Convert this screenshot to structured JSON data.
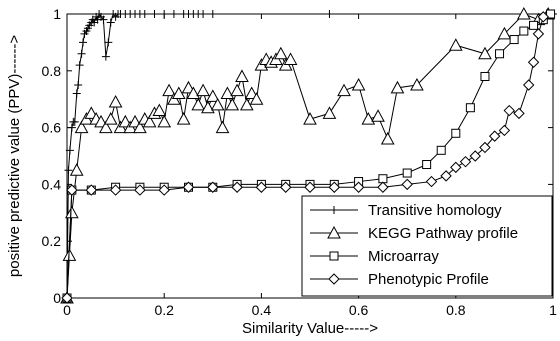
{
  "chart_data": {
    "type": "line",
    "title": "",
    "xlabel": "Similarity Value----->",
    "ylabel": "positive predictive value (PPV)------>",
    "xlim": [
      0,
      1
    ],
    "ylim": [
      0,
      1
    ],
    "x_ticks": [
      "0",
      "0.2",
      "0.4",
      "0.6",
      "0.8",
      "1"
    ],
    "y_ticks": [
      "0",
      "0.2",
      "0.4",
      "0.6",
      "0.8",
      "1"
    ],
    "grid": false,
    "legend_position": "bottom-right",
    "series": [
      {
        "name": "Transitive homology",
        "marker": "plus",
        "x": [
          0,
          0.003,
          0.006,
          0.01,
          0.013,
          0.016,
          0.02,
          0.023,
          0.026,
          0.03,
          0.033,
          0.036,
          0.04,
          0.043,
          0.046,
          0.05,
          0.053,
          0.056,
          0.06,
          0.063,
          0.066,
          0.07,
          0.075,
          0.08,
          0.085,
          0.09,
          0.095,
          0.1,
          0.105,
          0.11,
          0.12,
          0.13,
          0.14,
          0.15,
          0.16,
          0.18,
          0.2,
          0.22,
          0.24,
          0.25,
          0.26,
          0.27,
          0.28,
          0.3,
          0.54,
          1.0
        ],
        "y": [
          0.0,
          0.45,
          0.52,
          0.6,
          0.62,
          0.62,
          0.72,
          0.75,
          0.82,
          0.86,
          0.9,
          0.93,
          0.94,
          0.95,
          0.96,
          0.97,
          0.98,
          0.97,
          0.99,
          0.98,
          1.0,
          0.99,
          0.98,
          0.85,
          0.9,
          0.97,
          1.0,
          0.99,
          1.0,
          1.0,
          1.0,
          1.0,
          1.0,
          1.0,
          1.0,
          1.0,
          1.0,
          1.0,
          1.0,
          1.0,
          1.0,
          1.0,
          1.0,
          1.0,
          1.0,
          1.0
        ]
      },
      {
        "name": "KEGG Pathway profile",
        "marker": "triangle",
        "x": [
          0,
          0.005,
          0.01,
          0.02,
          0.03,
          0.04,
          0.05,
          0.06,
          0.07,
          0.08,
          0.09,
          0.1,
          0.11,
          0.12,
          0.13,
          0.14,
          0.15,
          0.16,
          0.17,
          0.18,
          0.19,
          0.2,
          0.21,
          0.22,
          0.23,
          0.24,
          0.25,
          0.26,
          0.27,
          0.28,
          0.29,
          0.3,
          0.31,
          0.32,
          0.33,
          0.34,
          0.35,
          0.36,
          0.37,
          0.38,
          0.39,
          0.4,
          0.41,
          0.42,
          0.43,
          0.44,
          0.45,
          0.46,
          0.5,
          0.54,
          0.57,
          0.6,
          0.62,
          0.64,
          0.66,
          0.68,
          0.72,
          0.8,
          0.86,
          0.9,
          0.94,
          0.97,
          0.99
        ],
        "y": [
          0.0,
          0.15,
          0.3,
          0.45,
          0.6,
          0.63,
          0.65,
          0.63,
          0.62,
          0.6,
          0.63,
          0.69,
          0.6,
          0.62,
          0.6,
          0.62,
          0.6,
          0.63,
          0.62,
          0.65,
          0.66,
          0.62,
          0.73,
          0.7,
          0.72,
          0.63,
          0.74,
          0.72,
          0.68,
          0.73,
          0.67,
          0.71,
          0.68,
          0.6,
          0.72,
          0.68,
          0.73,
          0.78,
          0.68,
          0.72,
          0.7,
          0.82,
          0.84,
          0.83,
          0.84,
          0.86,
          0.82,
          0.84,
          0.63,
          0.65,
          0.73,
          0.75,
          0.63,
          0.64,
          0.56,
          0.74,
          0.75,
          0.89,
          0.86,
          0.93,
          1.0,
          0.98,
          1.0
        ]
      },
      {
        "name": "Microarray",
        "marker": "square",
        "x": [
          0,
          0.01,
          0.05,
          0.1,
          0.15,
          0.2,
          0.25,
          0.3,
          0.35,
          0.4,
          0.45,
          0.5,
          0.55,
          0.6,
          0.65,
          0.7,
          0.74,
          0.77,
          0.8,
          0.83,
          0.86,
          0.89,
          0.92,
          0.94,
          0.96,
          0.98,
          0.995
        ],
        "y": [
          0.0,
          0.38,
          0.38,
          0.39,
          0.39,
          0.39,
          0.39,
          0.39,
          0.4,
          0.4,
          0.4,
          0.4,
          0.4,
          0.41,
          0.42,
          0.44,
          0.47,
          0.52,
          0.58,
          0.67,
          0.78,
          0.86,
          0.91,
          0.94,
          0.96,
          0.98,
          1.0
        ]
      },
      {
        "name": "Phenotypic Profile",
        "marker": "diamond",
        "x": [
          0,
          0.01,
          0.05,
          0.1,
          0.15,
          0.2,
          0.25,
          0.3,
          0.35,
          0.4,
          0.45,
          0.5,
          0.55,
          0.6,
          0.65,
          0.7,
          0.75,
          0.78,
          0.8,
          0.82,
          0.84,
          0.86,
          0.88,
          0.9,
          0.91,
          0.93,
          0.95,
          0.96,
          0.97,
          0.98
        ],
        "y": [
          0.0,
          0.38,
          0.38,
          0.38,
          0.38,
          0.38,
          0.39,
          0.39,
          0.39,
          0.39,
          0.39,
          0.39,
          0.39,
          0.39,
          0.39,
          0.4,
          0.41,
          0.43,
          0.46,
          0.48,
          0.5,
          0.53,
          0.57,
          0.59,
          0.66,
          0.65,
          0.75,
          0.83,
          0.93,
          0.99
        ]
      }
    ]
  }
}
